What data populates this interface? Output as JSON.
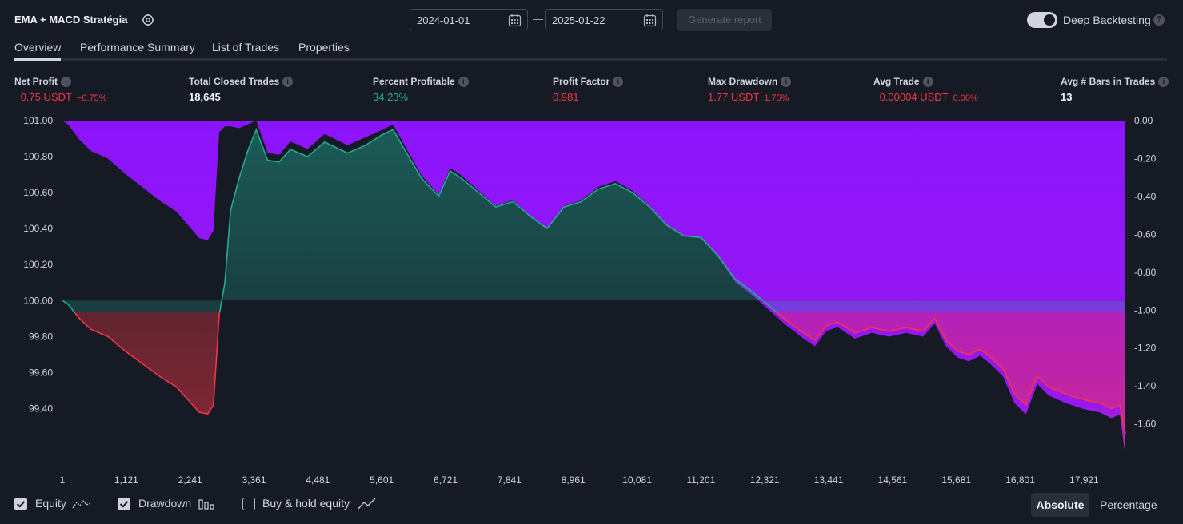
{
  "header": {
    "strategy_name": "EMA + MACD Stratégia",
    "start_date": "2024-01-01",
    "end_date": "2025-01-22",
    "date_separator": "—",
    "generate_label": "Generate report",
    "deep_backtesting_label": "Deep Backtesting",
    "deep_backtesting_on": true
  },
  "tabs": [
    {
      "label": "Overview",
      "active": true
    },
    {
      "label": "Performance Summary",
      "active": false
    },
    {
      "label": "List of Trades",
      "active": false
    },
    {
      "label": "Properties",
      "active": false
    }
  ],
  "metrics": [
    {
      "label": "Net Profit",
      "value": "−0.75 USDT",
      "sub": "−0.75%",
      "tone": "red"
    },
    {
      "label": "Total Closed Trades",
      "value": "18,645",
      "sub": "",
      "tone": "white"
    },
    {
      "label": "Percent Profitable",
      "value": "34.23%",
      "sub": "",
      "tone": "green"
    },
    {
      "label": "Profit Factor",
      "value": "0.981",
      "sub": "",
      "tone": "red"
    },
    {
      "label": "Max Drawdown",
      "value": "1.77 USDT",
      "sub": "1.75%",
      "tone": "red"
    },
    {
      "label": "Avg Trade",
      "value": "−0.00004 USDT",
      "sub": "0.00%",
      "tone": "red"
    },
    {
      "label": "Avg # Bars in Trades",
      "value": "13",
      "sub": "",
      "tone": "white"
    }
  ],
  "chart_data": {
    "type": "area",
    "x_ticks": [
      "1",
      "1,121",
      "2,241",
      "3,361",
      "4,481",
      "5,601",
      "6,721",
      "7,841",
      "8,961",
      "10,081",
      "11,201",
      "12,321",
      "13,441",
      "14,561",
      "15,681",
      "16,801",
      "17,921"
    ],
    "x_range": [
      1,
      18645
    ],
    "equity": {
      "name": "Equity",
      "baseline": 100.0,
      "ylim": [
        99.3,
        101.0
      ],
      "y_ticks": [
        "101.00",
        "100.80",
        "100.60",
        "100.40",
        "100.20",
        "100.00",
        "99.80",
        "99.60",
        "99.40"
      ],
      "x": [
        1,
        100,
        300,
        500,
        800,
        1100,
        1400,
        1700,
        2000,
        2200,
        2400,
        2550,
        2650,
        2750,
        2850,
        2950,
        3100,
        3250,
        3400,
        3600,
        3800,
        4000,
        4300,
        4600,
        5000,
        5300,
        5600,
        5800,
        6000,
        6300,
        6600,
        6800,
        7000,
        7300,
        7600,
        7900,
        8200,
        8500,
        8800,
        9100,
        9400,
        9700,
        10000,
        10300,
        10600,
        10900,
        11200,
        11500,
        11800,
        12100,
        12400,
        12700,
        13000,
        13200,
        13400,
        13600,
        13900,
        14200,
        14500,
        14800,
        15100,
        15300,
        15500,
        15700,
        15900,
        16100,
        16300,
        16500,
        16700,
        16900,
        17100,
        17300,
        17600,
        17900,
        18200,
        18400,
        18550,
        18645
      ],
      "y": [
        100.0,
        99.98,
        99.9,
        99.84,
        99.8,
        99.72,
        99.65,
        99.58,
        99.52,
        99.45,
        99.38,
        99.37,
        99.42,
        99.92,
        100.1,
        100.5,
        100.68,
        100.83,
        100.95,
        100.78,
        100.77,
        100.84,
        100.8,
        100.88,
        100.82,
        100.86,
        100.92,
        100.95,
        100.84,
        100.68,
        100.58,
        100.72,
        100.68,
        100.6,
        100.52,
        100.55,
        100.47,
        100.4,
        100.52,
        100.55,
        100.62,
        100.65,
        100.6,
        100.52,
        100.42,
        100.36,
        100.35,
        100.25,
        100.12,
        100.05,
        99.97,
        99.89,
        99.82,
        99.78,
        99.86,
        99.88,
        99.82,
        99.85,
        99.83,
        99.85,
        99.83,
        99.9,
        99.78,
        99.72,
        99.7,
        99.73,
        99.68,
        99.62,
        99.48,
        99.42,
        99.58,
        99.52,
        99.48,
        99.45,
        99.43,
        99.4,
        99.42,
        99.26
      ]
    },
    "drawdown": {
      "name": "Drawdown",
      "ylim": [
        -1.8,
        0.05
      ],
      "y_ticks": [
        "0.00",
        "-0.20",
        "-0.40",
        "-0.60",
        "-0.80",
        "-1.00",
        "-1.20",
        "-1.40",
        "-1.60"
      ],
      "x": [
        1,
        100,
        300,
        500,
        800,
        1100,
        1400,
        1700,
        2000,
        2200,
        2400,
        2550,
        2650,
        2750,
        2850,
        2950,
        3100,
        3250,
        3400,
        3600,
        3800,
        4000,
        4300,
        4600,
        5000,
        5300,
        5600,
        5800,
        6000,
        6300,
        6600,
        6800,
        7000,
        7300,
        7600,
        7900,
        8200,
        8500,
        8800,
        9100,
        9400,
        9700,
        10000,
        10300,
        10600,
        10900,
        11200,
        11500,
        11800,
        12100,
        12400,
        12700,
        13000,
        13200,
        13400,
        13600,
        13900,
        14200,
        14500,
        14800,
        15100,
        15300,
        15500,
        15700,
        15900,
        16100,
        16300,
        16500,
        16700,
        16900,
        17100,
        17300,
        17600,
        17900,
        18200,
        18400,
        18550,
        18645
      ],
      "y": [
        0.0,
        -0.02,
        -0.1,
        -0.16,
        -0.2,
        -0.28,
        -0.35,
        -0.42,
        -0.48,
        -0.55,
        -0.62,
        -0.63,
        -0.58,
        -0.06,
        -0.03,
        -0.03,
        -0.04,
        -0.02,
        0.0,
        -0.17,
        -0.18,
        -0.11,
        -0.15,
        -0.07,
        -0.13,
        -0.09,
        -0.05,
        -0.02,
        -0.13,
        -0.29,
        -0.39,
        -0.25,
        -0.29,
        -0.37,
        -0.45,
        -0.42,
        -0.5,
        -0.57,
        -0.45,
        -0.42,
        -0.35,
        -0.32,
        -0.37,
        -0.45,
        -0.55,
        -0.61,
        -0.62,
        -0.72,
        -0.85,
        -0.92,
        -1.0,
        -1.08,
        -1.15,
        -1.19,
        -1.11,
        -1.09,
        -1.15,
        -1.12,
        -1.14,
        -1.12,
        -1.14,
        -1.07,
        -1.19,
        -1.25,
        -1.27,
        -1.24,
        -1.29,
        -1.35,
        -1.49,
        -1.55,
        -1.39,
        -1.45,
        -1.49,
        -1.52,
        -1.54,
        -1.57,
        -1.55,
        -1.77
      ]
    },
    "grid": false,
    "legend_placement": "bottom-left",
    "colors": {
      "equity_up": "#22ab94",
      "equity_down": "#f23645",
      "drawdown": "#8c14fc",
      "background": "#161a25"
    }
  },
  "legend": {
    "equity_label": "Equity",
    "equity_checked": true,
    "drawdown_label": "Drawdown",
    "drawdown_checked": true,
    "buyhold_label": "Buy & hold equity",
    "buyhold_checked": false,
    "absolute_label": "Absolute",
    "percentage_label": "Percentage",
    "mode": "Absolute"
  }
}
